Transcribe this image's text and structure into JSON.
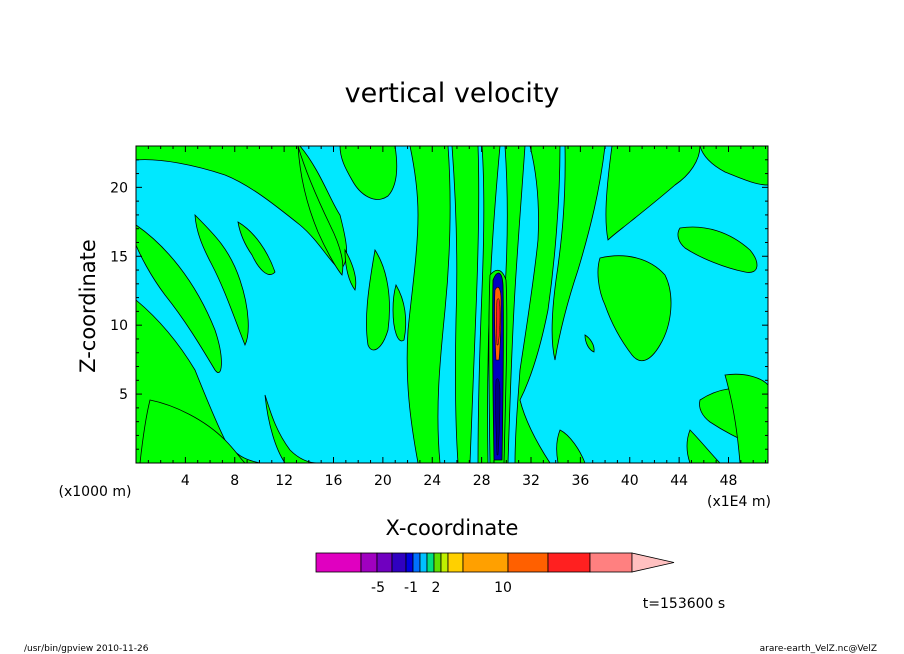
{
  "chart_data": {
    "type": "heatmap",
    "title": "vertical velocity",
    "xlabel": "X-coordinate",
    "ylabel": "Z-coordinate",
    "x_unit_left": "(x1000 m)",
    "x_unit_right": "(x1E4 m)",
    "x_ticks": [
      "4",
      "8",
      "12",
      "16",
      "20",
      "24",
      "28",
      "32",
      "36",
      "40",
      "44",
      "48"
    ],
    "x_tick_values": [
      4,
      8,
      12,
      16,
      20,
      24,
      28,
      32,
      36,
      40,
      44,
      48
    ],
    "y_ticks": [
      "5",
      "10",
      "15",
      "20"
    ],
    "y_tick_values": [
      5,
      10,
      15,
      20
    ],
    "xlim": [
      0,
      51.2
    ],
    "ylim": [
      0,
      23
    ],
    "time_label": "t=153600 s",
    "colorbar": {
      "tick_labels": [
        "-5",
        "-1",
        "2",
        "10"
      ],
      "colors": [
        "#e000c0",
        "#a000c0",
        "#7000c0",
        "#3000c0",
        "#0000e0",
        "#0070ff",
        "#00c0ff",
        "#00e080",
        "#60e000",
        "#c0f000",
        "#ffd000",
        "#ffa000",
        "#ff6000",
        "#ff2020",
        "#ff8080",
        "#ffc0c0"
      ]
    },
    "field_colors": {
      "background": "#00e8ff",
      "positive": "#00ff00"
    }
  },
  "footer": {
    "left": "/usr/bin/gpview   2010-11-26",
    "right": "arare-earth_VelZ.nc@VelZ"
  }
}
